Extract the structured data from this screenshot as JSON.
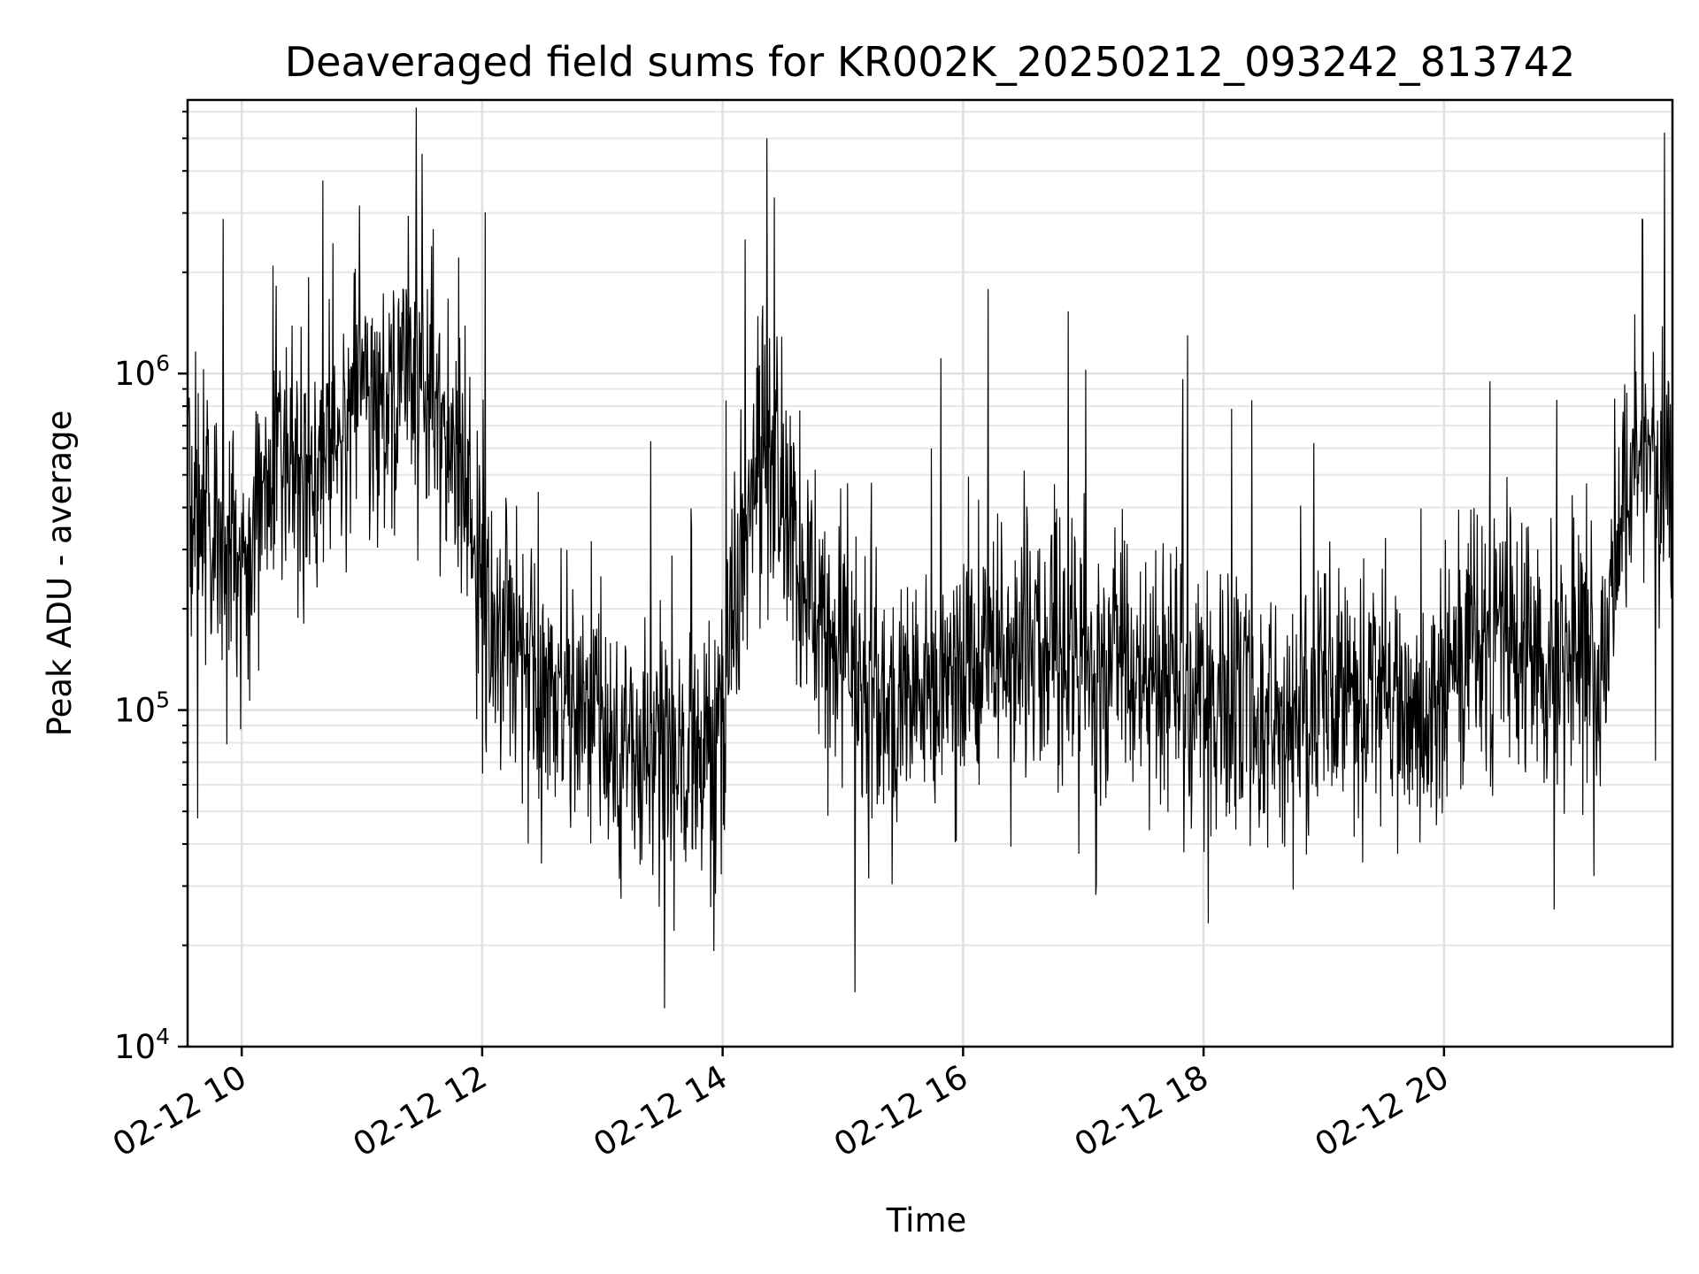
{
  "chart_data": {
    "type": "line",
    "title": "Deaveraged field sums for KR002K_20250212_093242_813742",
    "xlabel": "Time",
    "ylabel": "Peak ADU - average",
    "y_scale": "log",
    "ylim": [
      10000,
      6500000
    ],
    "xlim": [
      "2025-02-12 09:33",
      "2025-02-12 21:54"
    ],
    "grid": true,
    "line_color": "#000000",
    "x_ticks": [
      "02-12 10",
      "02-12 12",
      "02-12 14",
      "02-12 16",
      "02-12 18",
      "02-12 20"
    ],
    "y_ticks": [
      {
        "base": "10",
        "exp": "4",
        "value": 10000
      },
      {
        "base": "10",
        "exp": "5",
        "value": 100000
      },
      {
        "base": "10",
        "exp": "6",
        "value": 1000000
      }
    ],
    "trend": {
      "description_units": "time in hours of day (2025-02-12), value in ADU",
      "time_hours": [
        9.55,
        9.8,
        10.0,
        10.3,
        10.6,
        10.9,
        11.3,
        11.6,
        11.8,
        12.0,
        12.4,
        12.8,
        13.2,
        13.7,
        14.0,
        14.25,
        14.45,
        14.7,
        15.0,
        15.4,
        15.8,
        16.2,
        16.6,
        17.2,
        17.8,
        18.4,
        18.9,
        19.4,
        19.8,
        20.2,
        20.6,
        21.0,
        21.35,
        21.5,
        21.9
      ],
      "median_adu": [
        520000,
        310000,
        270000,
        620000,
        480000,
        870000,
        930000,
        850000,
        620000,
        200000,
        145000,
        95000,
        72000,
        68000,
        85000,
        640000,
        560000,
        200000,
        130000,
        110000,
        120000,
        165000,
        150000,
        135000,
        118000,
        100000,
        90000,
        115000,
        90000,
        160000,
        165000,
        150000,
        130000,
        470000,
        560000
      ]
    },
    "notable_peaks": [
      {
        "time": "2025-02-12 11:30",
        "value": 4500000
      },
      {
        "time": "2025-02-12 14:22",
        "value": 5000000
      },
      {
        "time": "2025-02-12 21:50",
        "value": 5200000
      }
    ],
    "notable_troughs": [
      {
        "time": "2025-02-12 13:31",
        "value": 13000
      },
      {
        "time": "2025-02-12 15:06",
        "value": 14500
      }
    ]
  }
}
